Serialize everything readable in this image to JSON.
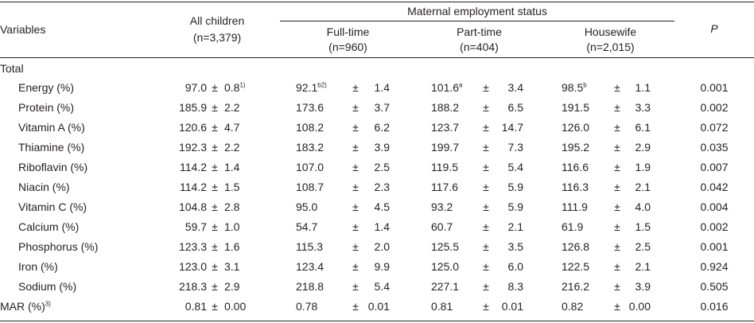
{
  "header": {
    "variables": "Variables",
    "all_children": "All children",
    "all_children_n": "(n=3,379)",
    "maternal_group": "Maternal employment status",
    "fulltime": "Full-time",
    "fulltime_n": "(n=960)",
    "parttime": "Part-time",
    "parttime_n": "(n=404)",
    "housewife": "Housewife",
    "housewife_n": "(n=2,015)",
    "p": "P"
  },
  "section_total": "Total",
  "pm": "±",
  "rows": [
    {
      "label": "Energy (%)",
      "label_sup": "",
      "all_mean": "97.0",
      "all_sd": "0.8",
      "all_sup": "1)",
      "ft_mean": "92.1",
      "ft_sup": "b2)",
      "ft_sd": "1.4",
      "pt_mean": "101.6",
      "pt_sup": "a",
      "pt_sd": "3.4",
      "hw_mean": "98.5",
      "hw_sup": "b",
      "hw_sd": "1.1",
      "p": "0.001"
    },
    {
      "label": "Protein (%)",
      "label_sup": "",
      "all_mean": "185.9",
      "all_sd": "2.2",
      "all_sup": "",
      "ft_mean": "173.6",
      "ft_sup": "",
      "ft_sd": "3.7",
      "pt_mean": "188.2",
      "pt_sup": "",
      "pt_sd": "6.5",
      "hw_mean": "191.5",
      "hw_sup": "",
      "hw_sd": "3.3",
      "p": "0.002"
    },
    {
      "label": "Vitamin A (%)",
      "label_sup": "",
      "all_mean": "120.6",
      "all_sd": "4.7",
      "all_sup": "",
      "ft_mean": "108.2",
      "ft_sup": "",
      "ft_sd": "6.2",
      "pt_mean": "123.7",
      "pt_sup": "",
      "pt_sd": "14.7",
      "hw_mean": "126.0",
      "hw_sup": "",
      "hw_sd": "6.1",
      "p": "0.072"
    },
    {
      "label": "Thiamine (%)",
      "label_sup": "",
      "all_mean": "192.3",
      "all_sd": "2.2",
      "all_sup": "",
      "ft_mean": "183.2",
      "ft_sup": "",
      "ft_sd": "3.9",
      "pt_mean": "199.7",
      "pt_sup": "",
      "pt_sd": "7.3",
      "hw_mean": "195.2",
      "hw_sup": "",
      "hw_sd": "2.9",
      "p": "0.035"
    },
    {
      "label": "Riboflavin (%)",
      "label_sup": "",
      "all_mean": "114.2",
      "all_sd": "1.4",
      "all_sup": "",
      "ft_mean": "107.0",
      "ft_sup": "",
      "ft_sd": "2.5",
      "pt_mean": "119.5",
      "pt_sup": "",
      "pt_sd": "5.4",
      "hw_mean": "116.6",
      "hw_sup": "",
      "hw_sd": "1.9",
      "p": "0.007"
    },
    {
      "label": "Niacin (%)",
      "label_sup": "",
      "all_mean": "114.2",
      "all_sd": "1.5",
      "all_sup": "",
      "ft_mean": "108.7",
      "ft_sup": "",
      "ft_sd": "2.3",
      "pt_mean": "117.6",
      "pt_sup": "",
      "pt_sd": "5.9",
      "hw_mean": "116.3",
      "hw_sup": "",
      "hw_sd": "2.1",
      "p": "0.042"
    },
    {
      "label": "Vitamin C (%)",
      "label_sup": "",
      "all_mean": "104.8",
      "all_sd": "2.8",
      "all_sup": "",
      "ft_mean": "95.0",
      "ft_sup": "",
      "ft_sd": "4.5",
      "pt_mean": "93.2",
      "pt_sup": "",
      "pt_sd": "5.9",
      "hw_mean": "111.9",
      "hw_sup": "",
      "hw_sd": "4.0",
      "p": "0.004"
    },
    {
      "label": "Calcium (%)",
      "label_sup": "",
      "all_mean": "59.7",
      "all_sd": "1.0",
      "all_sup": "",
      "ft_mean": "54.7",
      "ft_sup": "",
      "ft_sd": "1.4",
      "pt_mean": "60.7",
      "pt_sup": "",
      "pt_sd": "2.1",
      "hw_mean": "61.9",
      "hw_sup": "",
      "hw_sd": "1.5",
      "p": "0.002"
    },
    {
      "label": "Phosphorus (%)",
      "label_sup": "",
      "all_mean": "123.3",
      "all_sd": "1.6",
      "all_sup": "",
      "ft_mean": "115.3",
      "ft_sup": "",
      "ft_sd": "2.0",
      "pt_mean": "125.5",
      "pt_sup": "",
      "pt_sd": "3.5",
      "hw_mean": "126.8",
      "hw_sup": "",
      "hw_sd": "2.5",
      "p": "0.001"
    },
    {
      "label": "Iron (%)",
      "label_sup": "",
      "all_mean": "123.0",
      "all_sd": "3.1",
      "all_sup": "",
      "ft_mean": "123.4",
      "ft_sup": "",
      "ft_sd": "9.9",
      "pt_mean": "125.0",
      "pt_sup": "",
      "pt_sd": "6.0",
      "hw_mean": "122.5",
      "hw_sup": "",
      "hw_sd": "2.1",
      "p": "0.924"
    },
    {
      "label": "Sodium (%)",
      "label_sup": "",
      "all_mean": "218.3",
      "all_sd": "2.9",
      "all_sup": "",
      "ft_mean": "218.8",
      "ft_sup": "",
      "ft_sd": "5.4",
      "pt_mean": "227.1",
      "pt_sup": "",
      "pt_sd": "8.3",
      "hw_mean": "216.2",
      "hw_sup": "",
      "hw_sd": "3.9",
      "p": "0.505"
    },
    {
      "label": "MAR (%)",
      "label_sup": "3)",
      "all_mean": "0.81",
      "all_sd": "0.00",
      "all_sup": "",
      "ft_mean": "0.78",
      "ft_sup": "",
      "ft_sd": "0.01",
      "pt_mean": "0.81",
      "pt_sup": "",
      "pt_sd": "0.01",
      "hw_mean": "0.82",
      "hw_sup": "",
      "hw_sd": "0.00",
      "p": "0.016",
      "flush_left": true
    }
  ]
}
